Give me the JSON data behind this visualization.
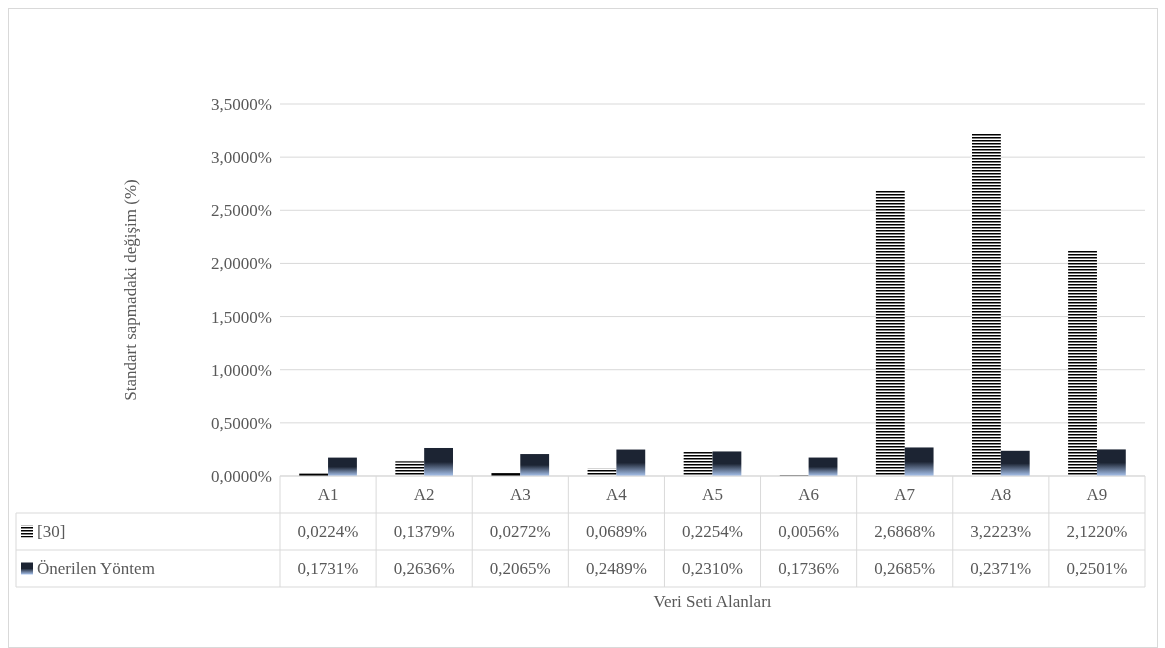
{
  "chart_data": {
    "type": "bar",
    "ylabel": "Standart sapmadaki değişim (%)",
    "annotations": [
      "Veri Seti Alanları"
    ],
    "categories": [
      "A1",
      "A2",
      "A3",
      "A4",
      "A5",
      "A6",
      "A7",
      "A8",
      "A9"
    ],
    "series": [
      {
        "name": "[30]",
        "color": "#000000",
        "values": [
          0.0224,
          0.1379,
          0.0272,
          0.0689,
          0.2254,
          0.0056,
          2.6868,
          3.2223,
          2.122
        ],
        "value_labels": [
          "0,0224%",
          "0,1379%",
          "0,0272%",
          "0,0689%",
          "0,2254%",
          "0,0056%",
          "2,6868%",
          "3,2223%",
          "2,1220%"
        ]
      },
      {
        "name": "Önerilen Yöntem",
        "color": "#1c2433",
        "values": [
          0.1731,
          0.2636,
          0.2065,
          0.2489,
          0.231,
          0.1736,
          0.2685,
          0.2371,
          0.2501
        ],
        "value_labels": [
          "0,1731%",
          "0,2636%",
          "0,2065%",
          "0,2489%",
          "0,2310%",
          "0,1736%",
          "0,2685%",
          "0,2371%",
          "0,2501%"
        ]
      }
    ],
    "ylim": [
      0,
      3.5
    ],
    "yticks": [
      {
        "value": 0,
        "label": "0,0000%"
      },
      {
        "value": 0.5,
        "label": "0,5000%"
      },
      {
        "value": 1,
        "label": "1,0000%"
      },
      {
        "value": 1.5,
        "label": "1,5000%"
      },
      {
        "value": 2,
        "label": "2,0000%"
      },
      {
        "value": 2.5,
        "label": "2,5000%"
      },
      {
        "value": 3,
        "label": "3,0000%"
      },
      {
        "value": 3.5,
        "label": "3,5000%"
      }
    ],
    "grid": "y",
    "legend": "bottom"
  }
}
